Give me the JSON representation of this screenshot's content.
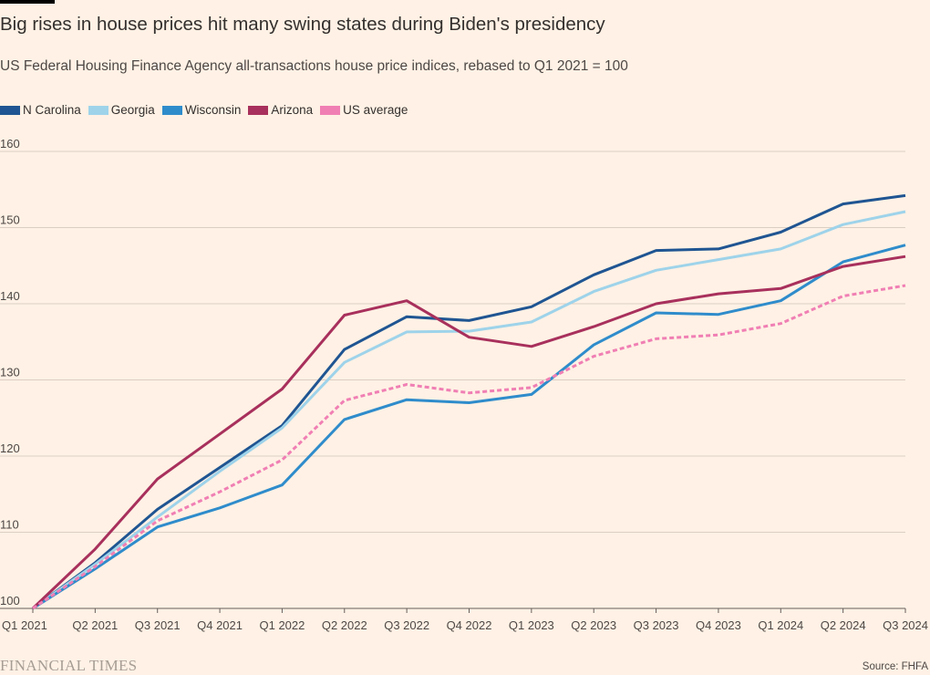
{
  "header": {
    "title": "Big rises in house prices hit many swing states during Biden's presidency",
    "subtitle": "US Federal Housing Finance Agency all-transactions house price indices, rebased to Q1 2021 = 100"
  },
  "footer": {
    "brand": "FINANCIAL TIMES",
    "source": "Source: FHFA"
  },
  "chart_data": {
    "type": "line",
    "title": "Big rises in house prices hit many swing states during Biden's presidency",
    "subtitle": "US Federal Housing Finance Agency all-transactions house price indices, rebased to Q1 2021 = 100",
    "categories": [
      "Q1 2021",
      "Q2 2021",
      "Q3 2021",
      "Q4 2021",
      "Q1 2022",
      "Q2 2022",
      "Q3 2022",
      "Q4 2022",
      "Q1 2023",
      "Q2 2023",
      "Q3 2023",
      "Q4 2023",
      "Q1 2024",
      "Q2 2024",
      "Q3 2024"
    ],
    "ylim": [
      100,
      160
    ],
    "yticks": [
      100,
      110,
      120,
      130,
      140,
      150,
      160
    ],
    "grid": true,
    "legend_position": "top-left",
    "series": [
      {
        "name": "N Carolina",
        "color": "#1F5592",
        "dashed": false,
        "values": [
          100,
          106,
          113,
          118.5,
          124,
          134,
          138.3,
          137.8,
          139.6,
          143.8,
          147,
          147.2,
          149.4,
          153.1,
          154.2
        ]
      },
      {
        "name": "Georgia",
        "color": "#9ED3EA",
        "dashed": false,
        "values": [
          100,
          105.8,
          112,
          118,
          123.7,
          132.3,
          136.3,
          136.4,
          137.6,
          141.6,
          144.4,
          145.8,
          147.2,
          150.4,
          152.1
        ]
      },
      {
        "name": "Wisconsin",
        "color": "#2F8CCB",
        "dashed": false,
        "values": [
          100,
          105.2,
          110.7,
          113.2,
          116.2,
          124.8,
          127.4,
          127,
          128.1,
          134.6,
          138.8,
          138.6,
          140.4,
          145.5,
          147.7
        ]
      },
      {
        "name": "Arizona",
        "color": "#A8305C",
        "dashed": false,
        "values": [
          100,
          107.8,
          117,
          122.9,
          128.8,
          138.5,
          140.4,
          135.6,
          134.4,
          137,
          140,
          141.3,
          142,
          144.9,
          146.2
        ]
      },
      {
        "name": "US average",
        "color": "#F07FB4",
        "dashed": true,
        "values": [
          100,
          105.5,
          111.5,
          115.3,
          119.5,
          127.3,
          129.4,
          128.3,
          129,
          133.1,
          135.4,
          135.9,
          137.4,
          141,
          142.4
        ]
      }
    ]
  }
}
